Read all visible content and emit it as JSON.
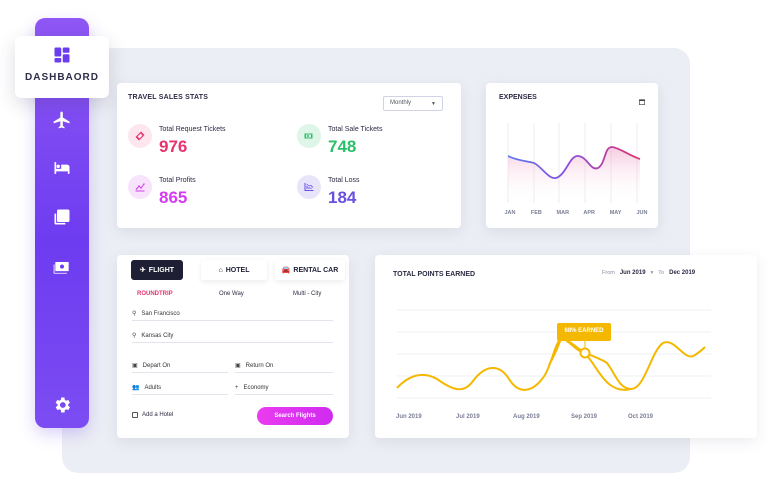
{
  "sidebar": {
    "dashboard_label": "DASHBAORD",
    "items": [
      {
        "icon": "dashboard-icon"
      },
      {
        "icon": "plane-icon"
      },
      {
        "icon": "bed-icon"
      },
      {
        "icon": "copy-icon"
      },
      {
        "icon": "money-icon"
      },
      {
        "icon": "gear-icon"
      }
    ]
  },
  "travel_sales": {
    "title": "TRAVEL SALES STATS",
    "period": "Monthly",
    "stats": [
      {
        "label": "Total Request Tickets",
        "value": "976",
        "color": "#e8336e"
      },
      {
        "label": "Total Sale Tickets",
        "value": "748",
        "color": "#29c06a"
      },
      {
        "label": "Total Profits",
        "value": "865",
        "color": "#d33cf0"
      },
      {
        "label": "Total Loss",
        "value": "184",
        "color": "#6a4fe0"
      }
    ]
  },
  "expenses": {
    "title": "EXPENSES",
    "months": [
      "JAN",
      "FEB",
      "MAR",
      "APR",
      "MAY",
      "JUN"
    ]
  },
  "booking": {
    "tabs": [
      {
        "label": "FLIGHT",
        "active": true
      },
      {
        "label": "HOTEL",
        "active": false
      },
      {
        "label": "RENTAL CAR",
        "active": false
      }
    ],
    "trip_types": [
      {
        "label": "ROUNDTRIP",
        "active": true
      },
      {
        "label": "One Way",
        "active": false
      },
      {
        "label": "Multi - City",
        "active": false
      }
    ],
    "from": "San Francisco",
    "to": "Kansas City",
    "depart_label": "Depart On",
    "return_label": "Return On",
    "passengers": "Adults",
    "class": "Economy",
    "add_hotel": "Add a Hotel",
    "search_label": "Search Flights"
  },
  "points": {
    "title": "TOTAL POINTS EARNED",
    "from_label": "From",
    "from_value": "Jun 2019",
    "to_label": "To",
    "to_value": "Dec 2019",
    "badge": "68% EARNED",
    "months": [
      "Jun 2019",
      "Jul 2019",
      "Aug 2019",
      "Sep 2019",
      "Oct 2019"
    ]
  },
  "colors": {
    "accent": "#7c4cf3",
    "points_line": "#f5b800",
    "expense_line_start": "#5b7cf0",
    "expense_line_end": "#e0336e"
  }
}
